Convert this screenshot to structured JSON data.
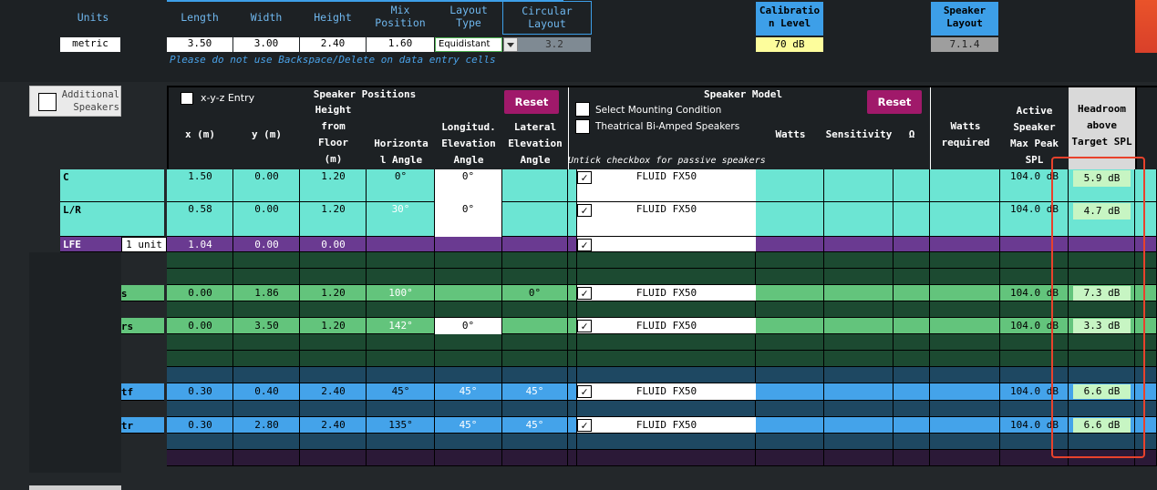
{
  "top": {
    "units_label": "Units",
    "units_value": "metric",
    "length_label": "Length",
    "width_label": "Width",
    "height_label": "Height",
    "mix_label": [
      "Mix",
      "Position"
    ],
    "layout_type_label": [
      "Layout",
      "Type"
    ],
    "circular_label": [
      "Circular",
      "Layout"
    ],
    "length_value": "3.50",
    "width_value": "3.00",
    "height_value": "2.40",
    "mix_value": "1.60",
    "layout_type_value": "Equidistant",
    "circular_value": "3.2",
    "note": "Please do not use Backspace/Delete on data entry cells",
    "calibration_label": [
      "Calibratio",
      "n Level"
    ],
    "calibration_value": "70 dB",
    "speaker_layout_label": [
      "Speaker",
      "Layout"
    ],
    "speaker_layout_value": "7.1.4"
  },
  "table": {
    "additional_speakers": [
      "Additional",
      "Speakers"
    ],
    "xyz_entry": "x-y-z Entry",
    "speaker_positions": "Speaker Positions",
    "reset_label": "Reset",
    "col_x": "x (m)",
    "col_y": "y (m)",
    "col_height": [
      "Height",
      "from",
      "Floor",
      "(m)"
    ],
    "col_horiz": [
      "Horizonta",
      "l Angle"
    ],
    "col_longit": [
      "Longitud.",
      "Elevation",
      "Angle"
    ],
    "col_lateral": [
      "Lateral",
      "Elevation",
      "Angle"
    ],
    "speaker_model": "Speaker Model",
    "select_mounting": "Select Mounting Condition",
    "theatrical": "Theatrical Bi-Amped Speakers",
    "col_watts": "Watts",
    "col_sensitivity": "Sensitivity",
    "col_ohm": "Ω",
    "untick_note": "Untick checkbox for passive speakers",
    "col_watts_req": [
      "Watts",
      "required"
    ],
    "col_active_spl": [
      "Active",
      "Speaker",
      "Max Peak",
      "SPL"
    ],
    "col_headroom": [
      "Headroom",
      "above",
      "Target SPL"
    ]
  },
  "rows": [
    {
      "name": "C",
      "x": "1.50",
      "y": "0.00",
      "h": "1.20",
      "ha": "0°",
      "le": "0°",
      "la": "",
      "model": "FLUID FX50",
      "spl": "104.0 dB",
      "head": "5.9 dB"
    },
    {
      "name": "L/R",
      "x": "0.58",
      "y": "0.00",
      "h": "1.20",
      "ha": "30°",
      "le": "0°",
      "la": "",
      "model": "FLUID FX50",
      "spl": "104.0 dB",
      "head": "4.7 dB"
    },
    {
      "name": "LFE",
      "x": "1.04",
      "y": "0.00",
      "h": "0.00",
      "unit": "1 unit"
    },
    {
      "name": "Ls/Rs",
      "x": "0.00",
      "y": "1.86",
      "h": "1.20",
      "ha": "100°",
      "le": "",
      "la": "0°",
      "model": "FLUID FX50",
      "spl": "104.0 dB",
      "head": "7.3 dB"
    },
    {
      "name": "Lrs/Rrs",
      "x": "0.00",
      "y": "3.50",
      "h": "1.20",
      "ha": "142°",
      "le": "0°",
      "la": "",
      "model": "FLUID FX50",
      "spl": "104.0 dB",
      "head": "3.3 dB"
    },
    {
      "name": "Ltf/Rtf",
      "x": "0.30",
      "y": "0.40",
      "h": "2.40",
      "ha": "45°",
      "le": "45°",
      "la": "45°",
      "model": "FLUID FX50",
      "spl": "104.0 dB",
      "head": "6.6 dB"
    },
    {
      "name": "Ltr/Rtr",
      "x": "0.30",
      "y": "2.80",
      "h": "2.40",
      "ha": "135°",
      "le": "45°",
      "la": "45°",
      "model": "FLUID FX50",
      "spl": "104.0 dB",
      "head": "6.6 dB"
    }
  ],
  "checkmark": "✓",
  "colors": {
    "front": "#6ce5d3",
    "lfe": "#6a3a91",
    "surround_dark": "#1c4a31",
    "surround": "#63c47c",
    "height_dark": "#1e4862",
    "height": "#44a3ea",
    "purple_dark": "#2b1937",
    "highlight": "#e8422c"
  }
}
